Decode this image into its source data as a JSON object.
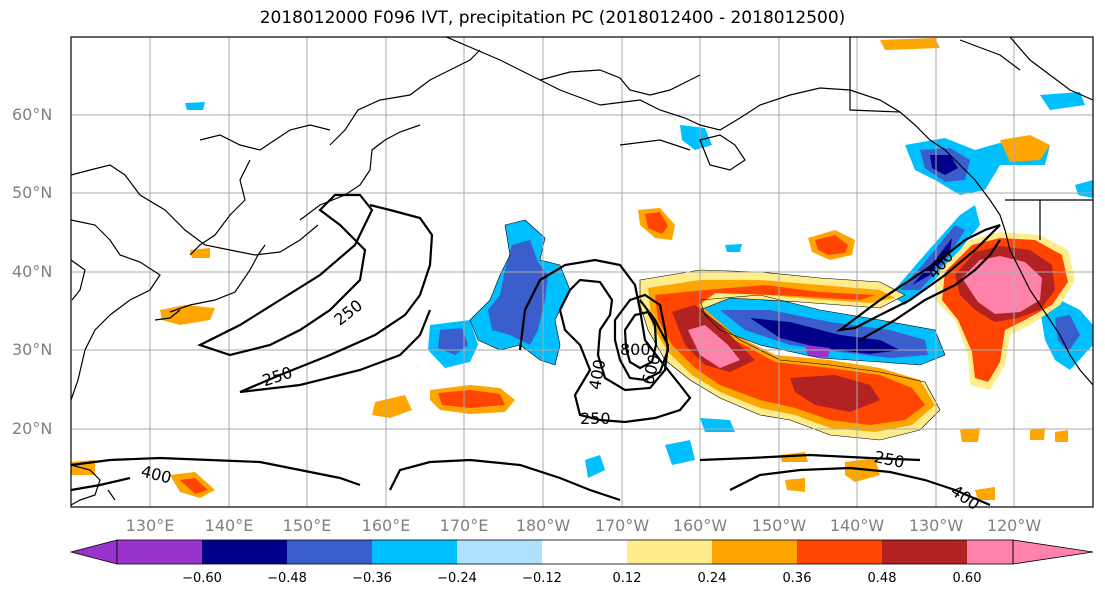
{
  "title": "2018012000 F096 IVT, precipitation PC (2018012400 - 2018012500)",
  "map": {
    "lat_labels": [
      "60°N",
      "50°N",
      "40°N",
      "30°N",
      "20°N"
    ],
    "lon_labels": [
      "130°E",
      "140°E",
      "150°E",
      "160°E",
      "170°E",
      "180°W",
      "170°W",
      "160°W",
      "150°W",
      "140°W",
      "130°W",
      "120°W"
    ],
    "ivt_contour_labels": [
      "250",
      "250",
      "250",
      "250",
      "400",
      "400",
      "400",
      "400",
      "600",
      "800"
    ],
    "gridlines": true
  },
  "colorbar": {
    "tick_labels": [
      "−0.60",
      "−0.48",
      "−0.36",
      "−0.24",
      "−0.12",
      "0.12",
      "0.24",
      "0.36",
      "0.48",
      "0.60"
    ],
    "colors": [
      "#9933cc",
      "#00008b",
      "#3a5fcd",
      "#00bfff",
      "#b0e2ff",
      "#ffffff",
      "#ffec8b",
      "#ffa500",
      "#ff4500",
      "#b22222",
      "#ff82ab"
    ],
    "extend": "both"
  }
}
